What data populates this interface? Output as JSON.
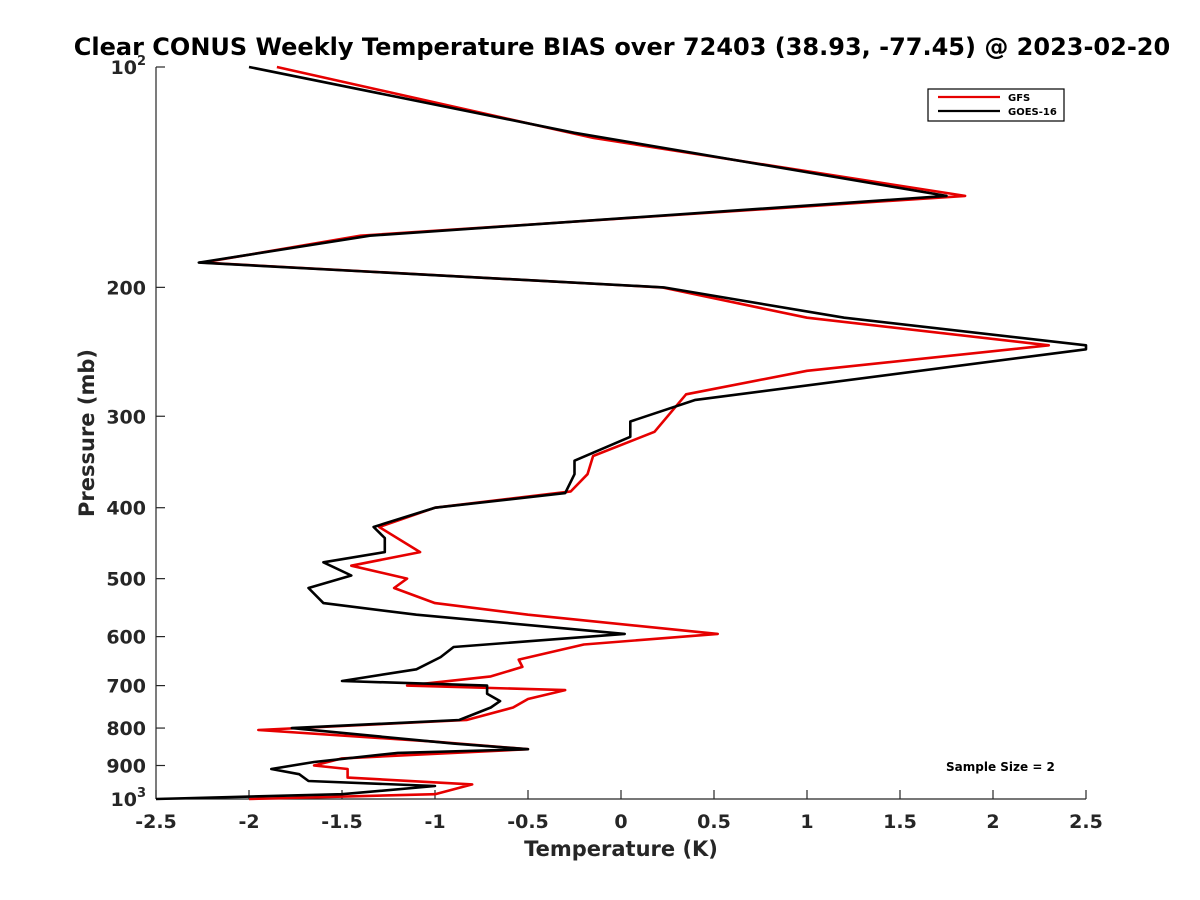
{
  "chart_data": {
    "type": "line",
    "title": "Clear CONUS Weekly Temperature BIAS over 72403 (38.93, -77.45) @ 2023-02-20",
    "xlabel": "Temperature (K)",
    "ylabel": "Pressure (mb)",
    "xlim": [
      -2.5,
      2.5
    ],
    "ylim": [
      100,
      1000
    ],
    "y_scale": "log",
    "y_reversed": true,
    "grid": false,
    "legend_position": "top-right",
    "x_ticks": [
      {
        "value": -2.5,
        "label": "-2.5"
      },
      {
        "value": -2,
        "label": "-2"
      },
      {
        "value": -1.5,
        "label": "-1.5"
      },
      {
        "value": -1,
        "label": "-1"
      },
      {
        "value": -0.5,
        "label": "-0.5"
      },
      {
        "value": 0,
        "label": "0"
      },
      {
        "value": 0.5,
        "label": "0.5"
      },
      {
        "value": 1,
        "label": "1"
      },
      {
        "value": 1.5,
        "label": "1.5"
      },
      {
        "value": 2,
        "label": "2"
      },
      {
        "value": 2.5,
        "label": "2.5"
      }
    ],
    "y_ticks": [
      {
        "value": 100,
        "base": "10",
        "exp": "2"
      },
      {
        "value": 200,
        "label": "200"
      },
      {
        "value": 300,
        "label": "300"
      },
      {
        "value": 400,
        "label": "400"
      },
      {
        "value": 500,
        "label": "500"
      },
      {
        "value": 600,
        "label": "600"
      },
      {
        "value": 700,
        "label": "700"
      },
      {
        "value": 800,
        "label": "800"
      },
      {
        "value": 900,
        "label": "900"
      },
      {
        "value": 1000,
        "base": "10",
        "exp": "3"
      }
    ],
    "series": [
      {
        "name": "GFS",
        "color": "#e60000",
        "points": [
          [
            -1.85,
            100
          ],
          [
            -0.15,
            125
          ],
          [
            1.85,
            150
          ],
          [
            -1.4,
            170
          ],
          [
            -2.25,
            185
          ],
          [
            0.22,
            200
          ],
          [
            1.0,
            220
          ],
          [
            2.3,
            240
          ],
          [
            1.0,
            260
          ],
          [
            0.35,
            280
          ],
          [
            0.18,
            315
          ],
          [
            -0.15,
            340
          ],
          [
            -0.18,
            360
          ],
          [
            -0.27,
            380
          ],
          [
            -1.0,
            400
          ],
          [
            -1.3,
            425
          ],
          [
            -1.08,
            460
          ],
          [
            -1.45,
            480
          ],
          [
            -1.15,
            500
          ],
          [
            -1.22,
            515
          ],
          [
            -1.0,
            540
          ],
          [
            -0.5,
            560
          ],
          [
            0.52,
            595
          ],
          [
            -0.2,
            615
          ],
          [
            -0.55,
            645
          ],
          [
            -0.53,
            660
          ],
          [
            -0.7,
            680
          ],
          [
            -1.15,
            700
          ],
          [
            -0.3,
            710
          ],
          [
            -0.5,
            730
          ],
          [
            -0.58,
            750
          ],
          [
            -0.83,
            780
          ],
          [
            -1.95,
            805
          ],
          [
            -1.0,
            835
          ],
          [
            -0.5,
            855
          ],
          [
            -1.5,
            880
          ],
          [
            -1.65,
            900
          ],
          [
            -1.47,
            910
          ],
          [
            -1.47,
            935
          ],
          [
            -0.8,
            955
          ],
          [
            -1.0,
            985
          ],
          [
            -2.0,
            1000
          ]
        ]
      },
      {
        "name": "GOES-16",
        "color": "#000000",
        "points": [
          [
            -2.0,
            100
          ],
          [
            -0.25,
            123
          ],
          [
            1.75,
            150
          ],
          [
            -1.35,
            170
          ],
          [
            -2.27,
            185
          ],
          [
            0.23,
            200
          ],
          [
            1.2,
            220
          ],
          [
            2.5,
            240
          ],
          [
            2.5,
            243
          ],
          [
            0.4,
            285
          ],
          [
            0.05,
            305
          ],
          [
            0.05,
            320
          ],
          [
            -0.25,
            345
          ],
          [
            -0.25,
            360
          ],
          [
            -0.3,
            382
          ],
          [
            -1.0,
            400
          ],
          [
            -1.33,
            425
          ],
          [
            -1.27,
            440
          ],
          [
            -1.27,
            460
          ],
          [
            -1.6,
            475
          ],
          [
            -1.45,
            495
          ],
          [
            -1.68,
            515
          ],
          [
            -1.6,
            540
          ],
          [
            -1.1,
            560
          ],
          [
            0.02,
            595
          ],
          [
            -0.9,
            620
          ],
          [
            -0.97,
            640
          ],
          [
            -1.1,
            665
          ],
          [
            -1.5,
            690
          ],
          [
            -0.72,
            700
          ],
          [
            -0.72,
            718
          ],
          [
            -0.65,
            735
          ],
          [
            -0.7,
            750
          ],
          [
            -0.87,
            780
          ],
          [
            -1.77,
            800
          ],
          [
            -0.9,
            840
          ],
          [
            -0.5,
            855
          ],
          [
            -1.2,
            865
          ],
          [
            -1.65,
            890
          ],
          [
            -1.88,
            910
          ],
          [
            -1.73,
            925
          ],
          [
            -1.68,
            945
          ],
          [
            -1.0,
            960
          ],
          [
            -1.5,
            985
          ],
          [
            -2.5,
            1000
          ]
        ]
      }
    ],
    "annotations": [
      "Sample Size = 2"
    ]
  }
}
